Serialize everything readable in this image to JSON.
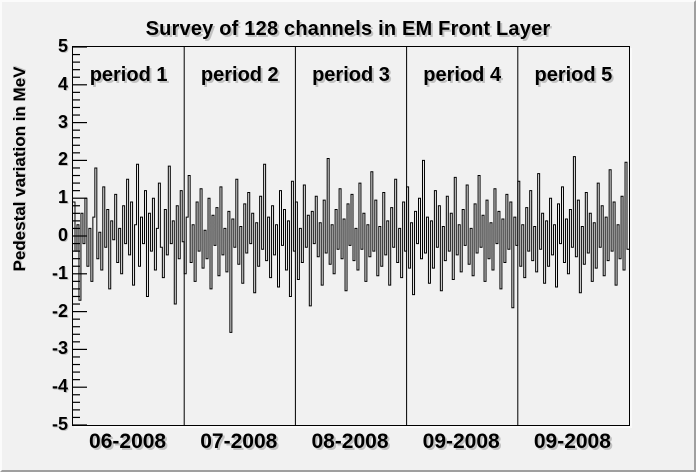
{
  "colors": {
    "canvas_bg": "#f1f1f1",
    "frame_border": "#000000",
    "trace": "#000000",
    "divider": "#000000",
    "tick": "#000000",
    "text": "#000000",
    "text_shadow": "#c2c2c2"
  },
  "chart_data": {
    "type": "line",
    "title": "Survey of 128 channels in EM Front Layer",
    "xlabel": "",
    "ylabel": "Pedestal variation in MeV",
    "ylim": [
      -5,
      5
    ],
    "y_major_ticks": [
      5,
      4,
      3,
      2,
      1,
      0,
      -1,
      -2,
      -3,
      -4,
      -5
    ],
    "y_minor_divisions_per_unit": 5,
    "grid": false,
    "legend_position": "none",
    "periods": [
      {
        "label": "period 1",
        "x_label": "06-2008"
      },
      {
        "label": "period 2",
        "x_label": "07-2008"
      },
      {
        "label": "period 3",
        "x_label": "08-2008"
      },
      {
        "label": "period 4",
        "x_label": "09-2008"
      },
      {
        "label": "period 5",
        "x_label": "09-2008"
      }
    ],
    "series": [
      {
        "name": "pedestal variation",
        "color": "#000000",
        "draw_style": "step",
        "values": [
          0.9,
          -0.4,
          0.3,
          -1.7,
          0.6,
          -0.2,
          1.0,
          -0.8,
          0.2,
          -1.2,
          0.5,
          1.8,
          -0.6,
          0.1,
          -0.9,
          1.3,
          -0.3,
          0.7,
          -1.4,
          0.4,
          -0.1,
          1.1,
          -0.7,
          0.2,
          -1.0,
          0.8,
          -0.2,
          1.5,
          -0.5,
          0.9,
          -1.3,
          0.3,
          1.9,
          -0.8,
          0.5,
          -0.2,
          1.2,
          -1.6,
          0.6,
          -0.4,
          1.0,
          -0.9,
          0.2,
          1.4,
          -0.3,
          -1.1,
          0.7,
          -0.5,
          1.85,
          -0.2,
          0.4,
          -1.8,
          0.8,
          -0.6,
          1.2,
          -0.15,
          -1.0,
          0.5,
          1.6,
          -0.7,
          0.3,
          -1.2,
          0.9,
          -0.4,
          1.25,
          -0.85,
          0.15,
          -0.6,
          1.0,
          -1.4,
          0.55,
          -0.25,
          0.75,
          -1.05,
          1.3,
          -0.5,
          0.2,
          -0.95,
          0.65,
          -2.55,
          0.45,
          -0.3,
          1.5,
          -0.75,
          0.25,
          -1.25,
          0.85,
          -0.45,
          1.15,
          -0.2,
          0.6,
          -1.5,
          0.35,
          -0.8,
          1.05,
          -0.35,
          1.9,
          -0.65,
          0.5,
          -1.1,
          0.8,
          -0.5,
          0.3,
          -1.35,
          1.2,
          -0.25,
          0.7,
          -0.9,
          0.4,
          -1.6,
          1.45,
          -0.4,
          0.9,
          -1.15,
          0.2,
          -0.7,
          1.35,
          -0.3,
          0.55,
          -1.85,
          0.65,
          -0.2,
          1.05,
          -0.55,
          0.35,
          -1.3,
          0.95,
          -0.45,
          2.05,
          -0.75,
          0.3,
          -1.0,
          0.7,
          -0.35,
          1.25,
          -0.6,
          0.45,
          -1.45,
          0.85,
          -0.25,
          1.1,
          -0.65,
          0.2,
          -0.9,
          1.4,
          -0.35,
          0.6,
          -1.2,
          0.3,
          -0.55,
          1.7,
          -0.4,
          0.95,
          -1.05,
          0.25,
          -0.8,
          1.15,
          -0.5,
          0.4,
          -1.3,
          0.75,
          -0.3,
          1.5,
          -0.7,
          0.2,
          -1.1,
          0.9,
          -0.4,
          1.3,
          -0.85,
          0.35,
          -1.55,
          0.65,
          -0.2,
          1.0,
          -0.6,
          2.0,
          -0.45,
          0.5,
          -1.25,
          0.4,
          -0.85,
          1.2,
          -0.3,
          0.8,
          -1.45,
          0.25,
          -0.65,
          1.05,
          -0.4,
          0.6,
          -1.15,
          1.55,
          -0.5,
          0.3,
          -0.95,
          0.7,
          -0.25,
          1.35,
          -0.75,
          0.2,
          -1.05,
          0.85,
          -0.45,
          1.6,
          -0.3,
          0.55,
          -1.2,
          0.95,
          -0.6,
          0.35,
          -0.9,
          1.25,
          -0.2,
          0.65,
          -1.4,
          0.45,
          -0.7,
          1.1,
          -0.35,
          0.9,
          -1.9,
          0.5,
          -0.25,
          1.45,
          -0.8,
          0.3,
          -1.1,
          0.75,
          -0.4,
          1.2,
          -0.65,
          0.25,
          -0.95,
          1.65,
          -0.35,
          0.6,
          -1.25,
          0.4,
          -0.8,
          1.0,
          -0.5,
          0.3,
          -1.35,
          0.85,
          -0.2,
          1.3,
          -0.7,
          0.45,
          -1.0,
          0.7,
          -0.3,
          2.1,
          -0.55,
          0.95,
          -1.5,
          0.25,
          -0.75,
          1.15,
          -0.45,
          0.6,
          -1.2,
          0.35,
          -0.85,
          1.4,
          -0.3,
          0.8,
          -1.05,
          0.5,
          -0.65,
          1.75,
          -0.4,
          0.9,
          -1.3,
          0.3,
          -0.6,
          1.05,
          -0.9,
          1.95,
          -0.35
        ]
      }
    ]
  }
}
